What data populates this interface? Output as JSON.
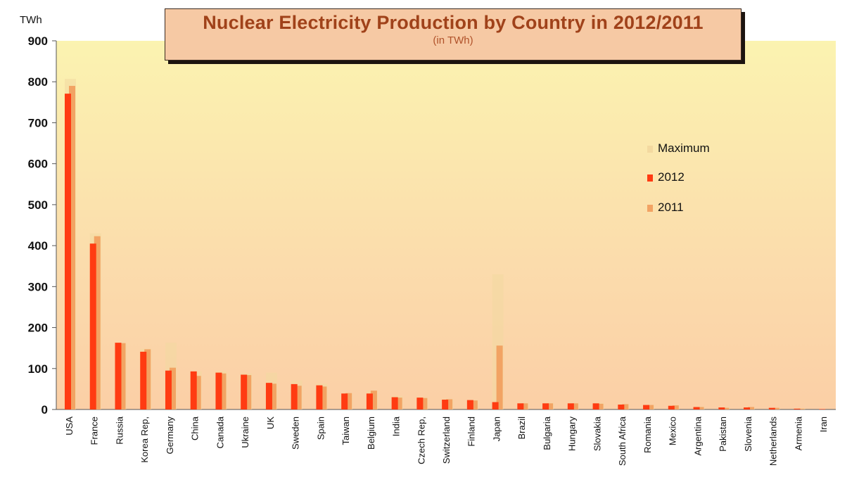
{
  "chart_data": {
    "type": "bar",
    "title": "Nuclear Electricity Production by Country in 2012/2011",
    "subtitle": "(in TWh)",
    "ylabel": "TWh",
    "xlabel": "",
    "ylim": [
      0,
      900
    ],
    "yticks": [
      0,
      100,
      200,
      300,
      400,
      500,
      600,
      700,
      800,
      900
    ],
    "grid": false,
    "legend_position": "right",
    "categories": [
      "USA",
      "France",
      "Russia",
      "Korea Rep,",
      "Germany",
      "China",
      "Canada",
      "Ukraine",
      "UK",
      "Sweden",
      "Spain",
      "Taiwan",
      "Belgium",
      "India",
      "Czech Rep,",
      "Switzerland",
      "Finland",
      "Japan",
      "Brazil",
      "Bulgaria",
      "Hungary",
      "Slovakia",
      "South Africa",
      "Romania",
      "Mexico",
      "Argentina",
      "Pakistan",
      "Slovenia",
      "Netherlands",
      "Armenia",
      "Iran"
    ],
    "series": [
      {
        "name": "Maximum",
        "color": "#f3d9a0",
        "values": [
          807,
          430,
          162,
          148,
          163,
          93,
          93,
          88,
          90,
          71,
          63,
          40,
          46,
          33,
          30,
          26,
          23,
          330,
          16,
          16,
          16,
          16,
          13,
          11,
          10,
          7,
          6,
          6,
          4,
          3,
          0
        ]
      },
      {
        "name": "2012",
        "color": "#ff3b12",
        "values": [
          771,
          405,
          163,
          141,
          95,
          93,
          90,
          85,
          65,
          62,
          59,
          39,
          39,
          30,
          29,
          24,
          23,
          18,
          15,
          15,
          15,
          15,
          12,
          11,
          9,
          6,
          5,
          5,
          4,
          2,
          1
        ]
      },
      {
        "name": "2011",
        "color": "#f2a363",
        "values": [
          790,
          423,
          162,
          147,
          102,
          82,
          88,
          84,
          63,
          58,
          56,
          40,
          46,
          29,
          28,
          25,
          22,
          156,
          15,
          15,
          15,
          14,
          13,
          11,
          10,
          6,
          4,
          6,
          4,
          2,
          0
        ]
      }
    ]
  }
}
